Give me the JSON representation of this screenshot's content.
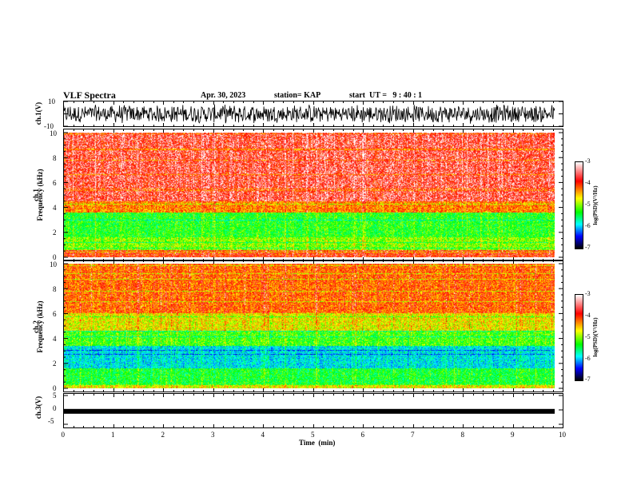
{
  "header": {
    "title": "VLF Spectra",
    "date": "Apr. 30, 2023",
    "station": "station= KAP",
    "start_ut": "start  UT =   9 : 40 : 1"
  },
  "chart_data": [
    {
      "type": "line",
      "panel": "ch1-waveform",
      "ylabel": "ch.1(V)",
      "ylim": [
        -10,
        10
      ],
      "yticks": [
        "10",
        "-10"
      ],
      "xlim": [
        0,
        10
      ],
      "data_extent_min": 9.8,
      "signal_amplitude_range": [
        -8,
        8
      ],
      "line_color": "#000000"
    },
    {
      "type": "heatmap",
      "panel": "ch1-spectrogram",
      "ylabel": "ch.1\nFrequency (kHz)",
      "ylabel_lines": [
        "ch.1",
        "Frequency  (kHz)"
      ],
      "ylim": [
        0,
        10
      ],
      "yticks": [
        "0",
        "2",
        "4",
        "6",
        "8",
        "10"
      ],
      "xlim": [
        0,
        10
      ],
      "data_extent_min": 9.8,
      "bands": [
        {
          "f_lo": 0.0,
          "f_hi": 0.6,
          "log_psd": -3.6
        },
        {
          "f_lo": 0.6,
          "f_hi": 1.6,
          "log_psd": -4.6
        },
        {
          "f_lo": 1.6,
          "f_hi": 3.6,
          "log_psd": -4.9
        },
        {
          "f_lo": 3.6,
          "f_hi": 4.5,
          "log_psd": -3.9
        },
        {
          "f_lo": 4.5,
          "f_hi": 10.0,
          "log_psd": -3.4
        }
      ],
      "colorbar": {
        "label": "log(PSD)(V²/Hz)",
        "range": [
          -7,
          -3
        ],
        "ticks": [
          "-3",
          "-4",
          "-5",
          "-6",
          "-7"
        ],
        "colors": [
          "#ffffff",
          "#ff0000",
          "#ffff00",
          "#00ff00",
          "#00ffff",
          "#0000ff",
          "#000000"
        ]
      }
    },
    {
      "type": "heatmap",
      "panel": "ch2-spectrogram",
      "ylabel": "ch.2\nFrequency (kHz)",
      "ylabel_lines": [
        "ch.2",
        "Frequency  (kHz)"
      ],
      "ylim": [
        0,
        10
      ],
      "yticks": [
        "0",
        "2",
        "4",
        "6",
        "8",
        "10"
      ],
      "xlim": [
        0,
        10
      ],
      "data_extent_min": 9.8,
      "bands": [
        {
          "f_lo": 0.0,
          "f_hi": 0.3,
          "log_psd": -4.3
        },
        {
          "f_lo": 0.3,
          "f_hi": 1.6,
          "log_psd": -5.0
        },
        {
          "f_lo": 1.6,
          "f_hi": 3.4,
          "log_psd": -5.6
        },
        {
          "f_lo": 3.4,
          "f_hi": 4.6,
          "log_psd": -4.8
        },
        {
          "f_lo": 4.6,
          "f_hi": 6.0,
          "log_psd": -4.3
        },
        {
          "f_lo": 6.0,
          "f_hi": 10.0,
          "log_psd": -3.8
        }
      ],
      "colorbar": {
        "label": "log(PSD)(V²/Hz)",
        "range": [
          -7,
          -3
        ],
        "ticks": [
          "-3",
          "-4",
          "-5",
          "-6",
          "-7"
        ],
        "colors": [
          "#ffffff",
          "#ff0000",
          "#ffff00",
          "#00ff00",
          "#00ffff",
          "#0000ff",
          "#000000"
        ]
      }
    },
    {
      "type": "line",
      "panel": "ch3-waveform",
      "ylabel": "ch.3(V)",
      "ylim": [
        -5,
        5
      ],
      "yticks": [
        "5",
        "0",
        "-5"
      ],
      "xlim": [
        0,
        10
      ],
      "data_extent_min": 9.8,
      "signal_level": -0.5,
      "line_color": "#000000"
    }
  ],
  "x_axis": {
    "label": "Time  (min)",
    "ticks": [
      "0",
      "1",
      "2",
      "3",
      "4",
      "5",
      "6",
      "7",
      "8",
      "9",
      "10"
    ],
    "range": [
      0,
      10
    ]
  }
}
